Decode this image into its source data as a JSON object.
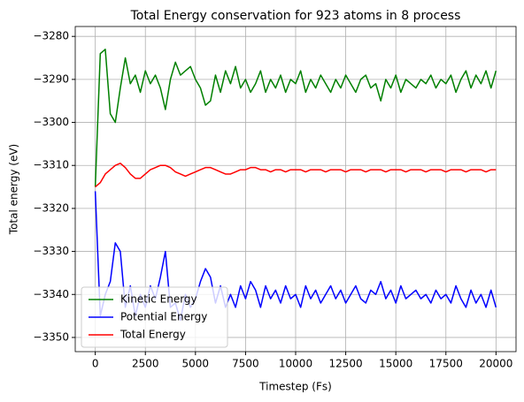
{
  "chart_data": {
    "type": "line",
    "title": "Total Energy conservation for 923 atoms in 8 process",
    "xlabel": "Timestep (Fs)",
    "ylabel": "Total energy (eV)",
    "x": [
      0,
      250,
      500,
      750,
      1000,
      1250,
      1500,
      1750,
      2000,
      2250,
      2500,
      2750,
      3000,
      3250,
      3500,
      3750,
      4000,
      4250,
      4500,
      4750,
      5000,
      5250,
      5500,
      5750,
      6000,
      6250,
      6500,
      6750,
      7000,
      7250,
      7500,
      7750,
      8000,
      8250,
      8500,
      8750,
      9000,
      9250,
      9500,
      9750,
      10000,
      10250,
      10500,
      10750,
      11000,
      11250,
      11500,
      11750,
      12000,
      12250,
      12500,
      12750,
      13000,
      13250,
      13500,
      13750,
      14000,
      14250,
      14500,
      14750,
      15000,
      15250,
      15500,
      15750,
      16000,
      16250,
      16500,
      16750,
      17000,
      17250,
      17500,
      17750,
      18000,
      18250,
      18500,
      18750,
      19000,
      19250,
      19500,
      19750,
      20000
    ],
    "series": [
      {
        "name": "Kinetic Energy",
        "color": "#008000",
        "values": [
          -3315,
          -3284,
          -3283,
          -3298,
          -3300,
          -3292,
          -3285,
          -3291,
          -3289,
          -3293,
          -3288,
          -3291,
          -3289,
          -3292,
          -3297,
          -3290,
          -3286,
          -3289,
          -3288,
          -3287,
          -3290,
          -3292,
          -3296,
          -3295,
          -3289,
          -3293,
          -3288,
          -3291,
          -3287,
          -3292,
          -3290,
          -3293,
          -3291,
          -3288,
          -3293,
          -3290,
          -3292,
          -3289,
          -3293,
          -3290,
          -3291,
          -3288,
          -3293,
          -3290,
          -3292,
          -3289,
          -3291,
          -3293,
          -3290,
          -3292,
          -3289,
          -3291,
          -3293,
          -3290,
          -3289,
          -3292,
          -3291,
          -3295,
          -3290,
          -3292,
          -3289,
          -3293,
          -3290,
          -3291,
          -3292,
          -3290,
          -3291,
          -3289,
          -3292,
          -3290,
          -3291,
          -3289,
          -3293,
          -3290,
          -3288,
          -3292,
          -3289,
          -3291,
          -3288,
          -3292,
          -3288
        ]
      },
      {
        "name": "Potential Energy",
        "color": "#0000ff",
        "values": [
          -3316,
          -3345,
          -3340,
          -3337,
          -3328,
          -3330,
          -3343,
          -3338,
          -3345,
          -3340,
          -3343,
          -3338,
          -3341,
          -3336,
          -3330,
          -3343,
          -3342,
          -3346,
          -3340,
          -3343,
          -3341,
          -3337,
          -3334,
          -3336,
          -3342,
          -3338,
          -3343,
          -3340,
          -3343,
          -3338,
          -3341,
          -3337,
          -3339,
          -3343,
          -3338,
          -3341,
          -3339,
          -3342,
          -3338,
          -3341,
          -3340,
          -3343,
          -3338,
          -3341,
          -3339,
          -3342,
          -3340,
          -3338,
          -3341,
          -3339,
          -3342,
          -3340,
          -3338,
          -3341,
          -3342,
          -3339,
          -3340,
          -3337,
          -3341,
          -3339,
          -3342,
          -3338,
          -3341,
          -3340,
          -3339,
          -3341,
          -3340,
          -3342,
          -3339,
          -3341,
          -3340,
          -3342,
          -3338,
          -3341,
          -3343,
          -3339,
          -3342,
          -3340,
          -3343,
          -3339,
          -3343
        ]
      },
      {
        "name": "Total Energy",
        "color": "#ff0000",
        "values": [
          -3315,
          -3314,
          -3312,
          -3311,
          -3310,
          -3309.5,
          -3310.5,
          -3312,
          -3313,
          -3313,
          -3312,
          -3311,
          -3310.5,
          -3310,
          -3310,
          -3310.5,
          -3311.5,
          -3312,
          -3312.5,
          -3312,
          -3311.5,
          -3311,
          -3310.5,
          -3310.5,
          -3311,
          -3311.5,
          -3312,
          -3312,
          -3311.5,
          -3311,
          -3311,
          -3310.5,
          -3310.5,
          -3311,
          -3311,
          -3311.5,
          -3311,
          -3311,
          -3311.5,
          -3311,
          -3311,
          -3311,
          -3311.5,
          -3311,
          -3311,
          -3311,
          -3311.5,
          -3311,
          -3311,
          -3311,
          -3311.5,
          -3311,
          -3311,
          -3311,
          -3311.5,
          -3311,
          -3311,
          -3311,
          -3311.5,
          -3311,
          -3311,
          -3311,
          -3311.5,
          -3311,
          -3311,
          -3311,
          -3311.5,
          -3311,
          -3311,
          -3311,
          -3311.5,
          -3311,
          -3311,
          -3311,
          -3311.5,
          -3311,
          -3311,
          -3311,
          -3311.5,
          -3311,
          -3311
        ]
      }
    ],
    "xlim": [
      -1000,
      21000
    ],
    "ylim": [
      -3353.3,
      -3277.7
    ],
    "xticks": [
      0,
      2500,
      5000,
      7500,
      10000,
      12500,
      15000,
      17500,
      20000
    ],
    "yticks": [
      {
        "value": -3280,
        "label": "−3280"
      },
      {
        "value": -3290,
        "label": "−3290"
      },
      {
        "value": -3300,
        "label": "−3300"
      },
      {
        "value": -3310,
        "label": "−3310"
      },
      {
        "value": -3320,
        "label": "−3320"
      },
      {
        "value": -3330,
        "label": "−3330"
      },
      {
        "value": -3340,
        "label": "−3340"
      },
      {
        "value": -3350,
        "label": "−3350"
      }
    ],
    "grid": true,
    "legend": "lower left"
  }
}
